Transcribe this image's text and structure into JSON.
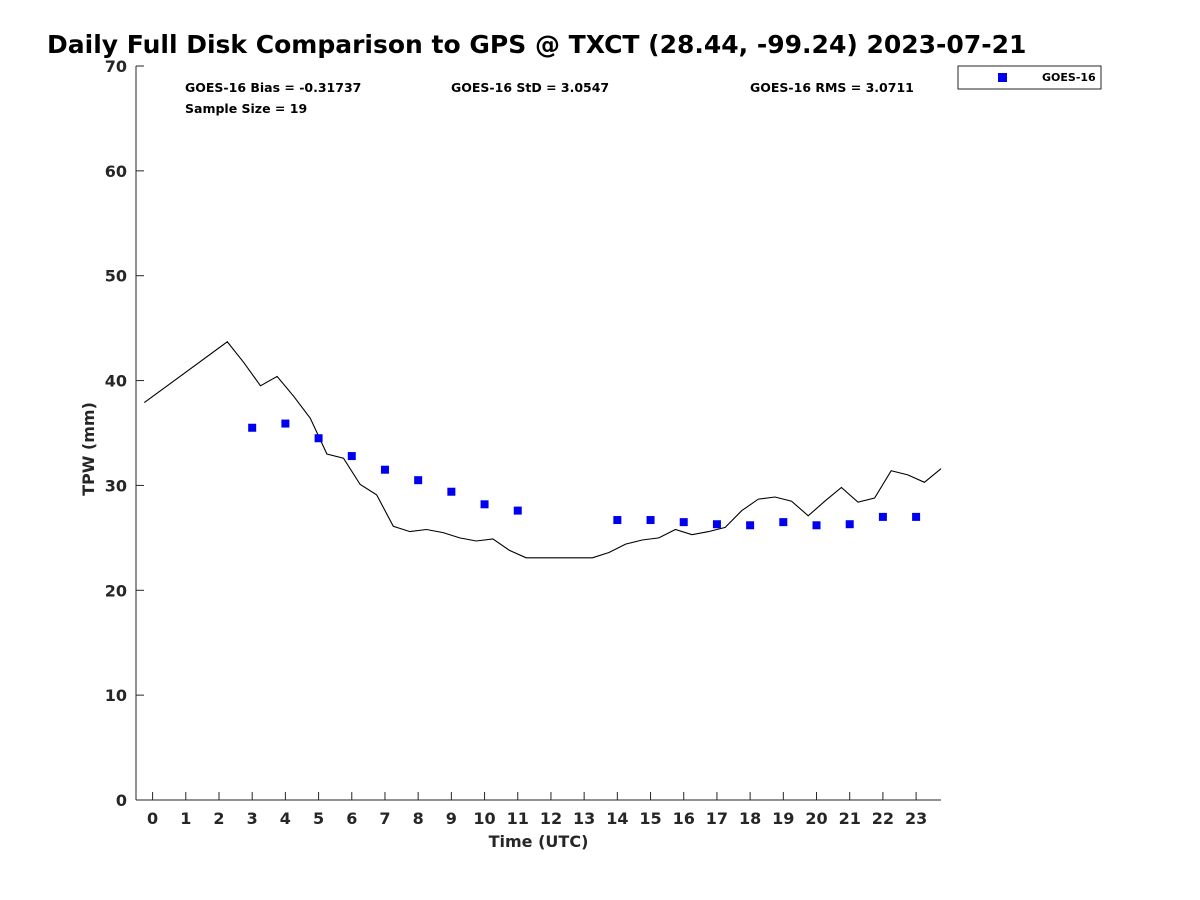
{
  "chart_data": {
    "type": "scatter",
    "title": "Daily Full Disk Comparison to GPS @ TXCT (28.44, -99.24) 2023-07-21",
    "xlabel": "Time (UTC)",
    "ylabel": "TPW (mm)",
    "xlim": [
      -0.5,
      23.75
    ],
    "ylim": [
      0,
      70
    ],
    "xticks": [
      0,
      1,
      2,
      3,
      4,
      5,
      6,
      7,
      8,
      9,
      10,
      11,
      12,
      13,
      14,
      15,
      16,
      17,
      18,
      19,
      20,
      21,
      22,
      23
    ],
    "yticks": [
      0,
      10,
      20,
      30,
      40,
      50,
      60,
      70
    ],
    "grid": false,
    "legend": {
      "position": "top-right",
      "entries": [
        "GOES-16"
      ]
    },
    "annotations": {
      "bias": "GOES-16 Bias = -0.31737",
      "std": "GOES-16 StD = 3.0547",
      "rms": "GOES-16 RMS = 3.0711",
      "sample": "Sample Size = 19"
    },
    "series": [
      {
        "name": "GOES-16",
        "kind": "scatter",
        "marker": "square",
        "color": "#0000ee",
        "x": [
          3,
          4,
          5,
          6,
          7,
          8,
          9,
          10,
          11,
          14,
          15,
          16,
          17,
          18,
          19,
          20,
          21,
          22,
          23
        ],
        "y": [
          35.5,
          35.9,
          34.5,
          32.8,
          31.5,
          30.5,
          29.4,
          28.2,
          27.6,
          26.7,
          26.7,
          26.5,
          26.3,
          26.2,
          26.5,
          26.2,
          26.3,
          27.0,
          27.0
        ]
      },
      {
        "kind": "line",
        "color": "#000000",
        "x": [
          -0.25,
          2.25,
          2.75,
          3.25,
          3.75,
          4.25,
          4.75,
          5.25,
          5.75,
          6.25,
          6.75,
          7.25,
          7.75,
          8.25,
          8.75,
          9.25,
          9.75,
          10.25,
          10.75,
          11.25,
          11.75,
          12.25,
          12.75,
          13.25,
          13.75,
          14.25,
          14.75,
          15.25,
          15.75,
          16.25,
          16.75,
          17.25,
          17.75,
          18.25,
          18.75,
          19.25,
          19.75,
          20.25,
          20.75,
          21.25,
          21.75,
          22.25,
          22.75,
          23.25,
          23.75
        ],
        "y": [
          37.9,
          43.7,
          41.7,
          39.5,
          40.4,
          38.5,
          36.4,
          33.0,
          32.6,
          30.1,
          29.1,
          26.1,
          25.6,
          25.8,
          25.5,
          25.0,
          24.7,
          24.9,
          23.8,
          23.1,
          23.1,
          23.1,
          23.1,
          23.1,
          23.6,
          24.4,
          24.8,
          25.0,
          25.8,
          25.3,
          25.6,
          26.0,
          27.6,
          28.7,
          28.9,
          28.5,
          27.1,
          28.5,
          29.8,
          28.4,
          28.8,
          31.4,
          31.0,
          30.3,
          31.6
        ]
      }
    ]
  }
}
